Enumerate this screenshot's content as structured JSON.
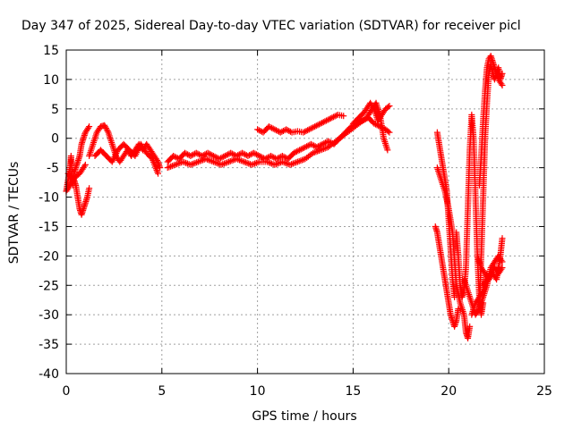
{
  "chart_data": {
    "type": "scatter",
    "title": "Day 347 of 2025, Sidereal Day-to-day VTEC variation (SDTVAR) for receiver picl",
    "xlabel": "GPS time / hours",
    "ylabel": "SDTVAR / TECUs",
    "xlim": [
      0,
      25
    ],
    "ylim": [
      -40,
      15
    ],
    "xticks": [
      0,
      5,
      10,
      15,
      20,
      25
    ],
    "yticks": [
      -40,
      -35,
      -30,
      -25,
      -20,
      -15,
      -10,
      -5,
      0,
      5,
      10,
      15
    ],
    "grid": true,
    "marker": "+",
    "color": "#ff0000",
    "series": [
      {
        "segments": [
          [
            [
              0.0,
              -9
            ],
            [
              0.1,
              -7
            ],
            [
              0.2,
              -5
            ],
            [
              0.25,
              -3
            ],
            [
              0.3,
              -6
            ],
            [
              0.35,
              -8
            ],
            [
              0.4,
              -6
            ],
            [
              0.5,
              -5
            ],
            [
              0.6,
              -4
            ],
            [
              0.7,
              -3
            ],
            [
              0.8,
              -1
            ],
            [
              0.9,
              0
            ],
            [
              1.0,
              1
            ],
            [
              1.1,
              1.5
            ],
            [
              1.2,
              2
            ]
          ],
          [
            [
              0.0,
              -9
            ],
            [
              0.2,
              -8
            ],
            [
              0.4,
              -7
            ],
            [
              0.5,
              -8
            ],
            [
              0.6,
              -10
            ],
            [
              0.7,
              -12
            ],
            [
              0.8,
              -13
            ],
            [
              0.9,
              -12
            ],
            [
              1.0,
              -11
            ],
            [
              1.1,
              -10
            ],
            [
              1.2,
              -8.5
            ]
          ],
          [
            [
              0.1,
              -6
            ],
            [
              0.3,
              -7
            ],
            [
              0.5,
              -6.5
            ],
            [
              0.7,
              -6
            ],
            [
              0.9,
              -5
            ],
            [
              1.0,
              -4.5
            ]
          ],
          [
            [
              1.2,
              -3
            ],
            [
              1.4,
              -1
            ],
            [
              1.6,
              1
            ],
            [
              1.8,
              2
            ],
            [
              2.0,
              2.2
            ],
            [
              2.2,
              1
            ],
            [
              2.4,
              -1
            ],
            [
              2.6,
              -3
            ],
            [
              2.8,
              -4
            ],
            [
              3.0,
              -3
            ],
            [
              3.2,
              -2
            ],
            [
              3.4,
              -3
            ],
            [
              3.6,
              -2
            ],
            [
              3.8,
              -1
            ],
            [
              4.0,
              -2
            ],
            [
              4.2,
              -1
            ],
            [
              4.4,
              -2
            ],
            [
              4.6,
              -3
            ],
            [
              4.8,
              -4
            ],
            [
              4.9,
              -5
            ]
          ],
          [
            [
              1.5,
              -3
            ],
            [
              1.8,
              -2
            ],
            [
              2.1,
              -3
            ],
            [
              2.4,
              -4
            ],
            [
              2.7,
              -2
            ],
            [
              3.0,
              -1
            ],
            [
              3.3,
              -2
            ],
            [
              3.6,
              -3
            ],
            [
              3.9,
              -1
            ],
            [
              4.2,
              -2.5
            ],
            [
              4.5,
              -3.5
            ],
            [
              4.8,
              -6
            ]
          ],
          [
            [
              5.3,
              -4
            ],
            [
              5.6,
              -3
            ],
            [
              5.9,
              -3.5
            ],
            [
              6.2,
              -2.5
            ],
            [
              6.5,
              -3
            ],
            [
              6.8,
              -2.5
            ],
            [
              7.1,
              -3
            ],
            [
              7.4,
              -2.5
            ],
            [
              7.7,
              -3
            ],
            [
              8.0,
              -3.5
            ],
            [
              8.3,
              -3
            ],
            [
              8.6,
              -2.5
            ],
            [
              8.9,
              -3
            ],
            [
              9.2,
              -2.5
            ],
            [
              9.5,
              -3
            ],
            [
              9.8,
              -2.5
            ],
            [
              10.1,
              -3
            ],
            [
              10.4,
              -3.5
            ],
            [
              10.7,
              -3
            ],
            [
              11.0,
              -3.5
            ],
            [
              11.3,
              -3
            ],
            [
              11.6,
              -3.5
            ],
            [
              11.9,
              -2.5
            ],
            [
              12.2,
              -2
            ],
            [
              12.5,
              -1.5
            ],
            [
              12.8,
              -1
            ],
            [
              13.1,
              -1.5
            ],
            [
              13.4,
              -1
            ],
            [
              13.7,
              -0.5
            ],
            [
              14.0,
              -1
            ],
            [
              14.3,
              0
            ],
            [
              14.6,
              1
            ],
            [
              14.9,
              2
            ],
            [
              15.2,
              2.5
            ],
            [
              15.5,
              3
            ],
            [
              15.8,
              3.5
            ],
            [
              16.1,
              2.5
            ],
            [
              16.4,
              2
            ],
            [
              16.7,
              1.5
            ],
            [
              16.9,
              1
            ]
          ],
          [
            [
              5.3,
              -5
            ],
            [
              5.7,
              -4.5
            ],
            [
              6.1,
              -4
            ],
            [
              6.5,
              -4.5
            ],
            [
              6.9,
              -4
            ],
            [
              7.3,
              -3.5
            ],
            [
              7.7,
              -4
            ],
            [
              8.1,
              -4.5
            ],
            [
              8.5,
              -4
            ],
            [
              8.9,
              -3.5
            ],
            [
              9.3,
              -4
            ],
            [
              9.7,
              -4.5
            ],
            [
              10.1,
              -4
            ],
            [
              10.5,
              -4
            ],
            [
              10.9,
              -4.5
            ],
            [
              11.3,
              -4
            ],
            [
              11.7,
              -4.5
            ],
            [
              12.1,
              -4
            ],
            [
              12.5,
              -3.5
            ],
            [
              12.9,
              -2.5
            ],
            [
              13.3,
              -2
            ],
            [
              13.7,
              -1.5
            ],
            [
              14.1,
              -0.5
            ],
            [
              14.5,
              0.5
            ],
            [
              14.9,
              1.5
            ],
            [
              15.3,
              2.5
            ],
            [
              15.7,
              3.5
            ],
            [
              16.0,
              5
            ],
            [
              16.2,
              6
            ],
            [
              16.4,
              4
            ],
            [
              16.6,
              0
            ],
            [
              16.8,
              -2
            ]
          ],
          [
            [
              10.0,
              1.5
            ],
            [
              10.3,
              1
            ],
            [
              10.6,
              2
            ],
            [
              10.9,
              1.5
            ],
            [
              11.2,
              1
            ],
            [
              11.5,
              1.5
            ],
            [
              11.8,
              1
            ],
            [
              12.1,
              1.2
            ],
            [
              12.4,
              1
            ],
            [
              12.7,
              1.5
            ],
            [
              13.0,
              2
            ],
            [
              13.3,
              2.5
            ],
            [
              13.6,
              3
            ],
            [
              13.9,
              3.5
            ],
            [
              14.2,
              4
            ],
            [
              14.5,
              3.8
            ]
          ],
          [
            [
              15.0,
              2.5
            ],
            [
              15.3,
              3.5
            ],
            [
              15.6,
              4.5
            ],
            [
              15.9,
              6
            ],
            [
              16.1,
              5
            ],
            [
              16.3,
              3
            ],
            [
              16.5,
              4
            ],
            [
              16.7,
              5
            ],
            [
              16.9,
              5.5
            ]
          ],
          [
            [
              19.3,
              -15
            ],
            [
              19.4,
              -16
            ],
            [
              19.5,
              -18
            ],
            [
              19.6,
              -20
            ],
            [
              19.7,
              -22
            ],
            [
              19.8,
              -24
            ],
            [
              19.9,
              -26
            ],
            [
              20.0,
              -28
            ],
            [
              20.1,
              -30
            ],
            [
              20.2,
              -31
            ],
            [
              20.3,
              -32
            ],
            [
              20.4,
              -31
            ],
            [
              20.5,
              -29
            ]
          ],
          [
            [
              19.4,
              1
            ],
            [
              19.5,
              -1
            ],
            [
              19.6,
              -3
            ],
            [
              19.7,
              -5
            ],
            [
              19.8,
              -7
            ],
            [
              19.9,
              -9
            ],
            [
              20.0,
              -14
            ],
            [
              20.1,
              -19
            ],
            [
              20.2,
              -24
            ],
            [
              20.3,
              -27
            ]
          ],
          [
            [
              19.4,
              -5
            ],
            [
              19.6,
              -7
            ],
            [
              19.8,
              -9
            ],
            [
              20.0,
              -12
            ],
            [
              20.2,
              -16
            ],
            [
              20.4,
              -25
            ],
            [
              20.6,
              -28
            ],
            [
              20.8,
              -30
            ],
            [
              20.9,
              -33
            ],
            [
              21.0,
              -34
            ],
            [
              21.1,
              -32
            ]
          ],
          [
            [
              20.4,
              -16
            ],
            [
              20.5,
              -20
            ],
            [
              20.6,
              -25
            ],
            [
              20.7,
              -27
            ],
            [
              20.8,
              -26
            ],
            [
              20.9,
              -22
            ],
            [
              21.0,
              -12
            ],
            [
              21.1,
              -2
            ],
            [
              21.2,
              4
            ],
            [
              21.3,
              0
            ],
            [
              21.4,
              -10
            ],
            [
              21.5,
              -20
            ],
            [
              21.6,
              -27
            ],
            [
              21.7,
              -30
            ],
            [
              21.8,
              -28
            ]
          ],
          [
            [
              20.8,
              -24
            ],
            [
              21.0,
              -26
            ],
            [
              21.2,
              -28
            ],
            [
              21.4,
              -30
            ],
            [
              21.6,
              -29
            ],
            [
              21.8,
              -27
            ],
            [
              22.0,
              -25
            ],
            [
              22.2,
              -22
            ],
            [
              22.4,
              -21
            ],
            [
              22.6,
              -20
            ],
            [
              22.8,
              -21
            ]
          ],
          [
            [
              21.6,
              -8
            ],
            [
              21.7,
              -3
            ],
            [
              21.8,
              3
            ],
            [
              21.9,
              8
            ],
            [
              22.0,
              12
            ],
            [
              22.1,
              13.5
            ],
            [
              22.2,
              14
            ],
            [
              22.3,
              13
            ],
            [
              22.4,
              12
            ],
            [
              22.5,
              11
            ],
            [
              22.6,
              10
            ],
            [
              22.7,
              9.5
            ],
            [
              22.8,
              9
            ]
          ],
          [
            [
              21.6,
              -29
            ],
            [
              21.7,
              -20
            ],
            [
              21.8,
              -10
            ],
            [
              21.9,
              0
            ],
            [
              22.0,
              6
            ],
            [
              22.1,
              11
            ],
            [
              22.2,
              12.5
            ],
            [
              22.3,
              11
            ],
            [
              22.4,
              10
            ],
            [
              22.5,
              11
            ],
            [
              22.6,
              12
            ],
            [
              22.7,
              10
            ],
            [
              22.8,
              11
            ]
          ],
          [
            [
              21.5,
              -20
            ],
            [
              21.7,
              -22
            ],
            [
              21.9,
              -23
            ],
            [
              22.1,
              -24
            ],
            [
              22.3,
              -23
            ],
            [
              22.5,
              -24
            ],
            [
              22.7,
              -20
            ],
            [
              22.8,
              -17
            ]
          ],
          [
            [
              21.8,
              -25
            ],
            [
              22.0,
              -24
            ],
            [
              22.2,
              -23
            ],
            [
              22.4,
              -22
            ],
            [
              22.6,
              -23
            ],
            [
              22.8,
              -22
            ]
          ],
          [
            [
              21.2,
              -30
            ],
            [
              21.4,
              -28
            ],
            [
              21.6,
              -27
            ],
            [
              21.8,
              -26
            ],
            [
              22.0,
              -23
            ]
          ]
        ]
      }
    ]
  }
}
